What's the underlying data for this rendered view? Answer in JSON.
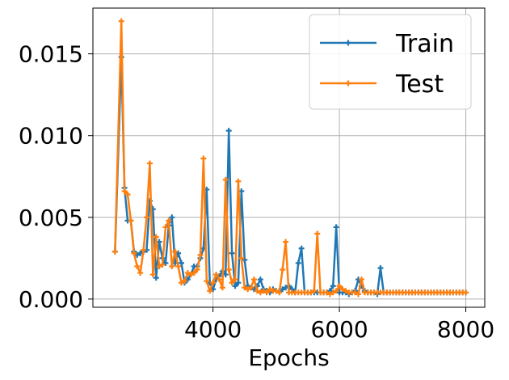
{
  "chart_data": {
    "type": "line",
    "title": "",
    "xlabel": "Epochs",
    "ylabel": "",
    "xlim": [
      2100,
      8300
    ],
    "ylim": [
      -0.0005,
      0.0178
    ],
    "x_ticks": [
      4000,
      6000,
      8000
    ],
    "x_tick_labels": [
      "4000",
      "6000",
      "8000"
    ],
    "y_ticks": [
      0.0,
      0.005,
      0.01,
      0.015
    ],
    "y_tick_labels": [
      "0.000",
      "0.005",
      "0.010",
      "0.015"
    ],
    "grid": true,
    "legend_position": "top-right",
    "x": [
      2450,
      2550,
      2600,
      2650,
      2700,
      2750,
      2800,
      2850,
      2900,
      2950,
      3000,
      3050,
      3100,
      3150,
      3200,
      3250,
      3300,
      3350,
      3400,
      3450,
      3500,
      3550,
      3600,
      3650,
      3700,
      3750,
      3800,
      3850,
      3900,
      3950,
      4000,
      4050,
      4100,
      4150,
      4200,
      4250,
      4300,
      4350,
      4400,
      4450,
      4500,
      4550,
      4600,
      4650,
      4700,
      4750,
      4800,
      4850,
      4900,
      4950,
      5000,
      5050,
      5100,
      5150,
      5200,
      5250,
      5300,
      5350,
      5400,
      5450,
      5500,
      5550,
      5600,
      5650,
      5700,
      5750,
      5800,
      5850,
      5900,
      5950,
      6000,
      6050,
      6100,
      6150,
      6200,
      6250,
      6300,
      6350,
      6400,
      6450,
      6500,
      6550,
      6600,
      6650,
      6700,
      6750,
      6800,
      6850,
      6900,
      6950,
      7000,
      7050,
      7100,
      7150,
      7200,
      7250,
      7300,
      7350,
      7400,
      7450,
      7500,
      7550,
      7600,
      7650,
      7700,
      7750,
      7800,
      7850,
      7900,
      7950,
      8000
    ],
    "series": [
      {
        "name": "Train",
        "color": "#1f77b4",
        "values": [
          0.0029,
          0.0148,
          0.0068,
          0.0048,
          0.0048,
          0.0029,
          0.0027,
          0.0028,
          0.0029,
          0.003,
          0.006,
          0.0055,
          0.0013,
          0.0035,
          0.0025,
          0.0022,
          0.0045,
          0.005,
          0.0022,
          0.0028,
          0.0022,
          0.001,
          0.0012,
          0.0015,
          0.002,
          0.002,
          0.0025,
          0.0031,
          0.0067,
          0.001,
          0.0006,
          0.0012,
          0.0014,
          0.0017,
          0.0015,
          0.0103,
          0.0028,
          0.0008,
          0.001,
          0.0066,
          0.0024,
          0.0008,
          0.0007,
          0.0006,
          0.0008,
          0.0012,
          0.0006,
          0.0005,
          0.0004,
          0.0006,
          0.0005,
          0.0005,
          0.0006,
          0.0007,
          0.0008,
          0.0006,
          0.0004,
          0.0022,
          0.0031,
          0.0004,
          0.0004,
          0.0004,
          0.0004,
          0.0004,
          0.0004,
          0.0004,
          0.0004,
          0.0005,
          0.0008,
          0.0044,
          0.0004,
          0.0004,
          0.0004,
          0.0003,
          0.0004,
          0.0005,
          0.0012,
          0.0008,
          0.0005,
          0.0004,
          0.0004,
          0.0004,
          0.0003,
          0.0019,
          0.0004,
          0.0004,
          0.0004,
          0.0004,
          0.0004,
          0.0004,
          0.0004,
          0.0004,
          0.0004,
          0.0004,
          0.0004,
          0.0004,
          0.0004,
          0.0004,
          0.0004,
          0.0004,
          0.0004,
          0.0004,
          0.0004,
          0.0004,
          0.0004,
          0.0004,
          0.0004,
          0.0004,
          0.0004,
          0.0004,
          0.0004
        ]
      },
      {
        "name": "Test",
        "color": "#ff7f0e",
        "values": [
          0.0029,
          0.017,
          0.0066,
          0.0064,
          0.0048,
          0.0028,
          0.002,
          0.0016,
          0.003,
          0.005,
          0.0083,
          0.0015,
          0.0038,
          0.002,
          0.0021,
          0.0044,
          0.0048,
          0.002,
          0.0029,
          0.002,
          0.001,
          0.0011,
          0.0016,
          0.0015,
          0.0016,
          0.0018,
          0.0027,
          0.0086,
          0.0011,
          0.0005,
          0.001,
          0.0015,
          0.0012,
          0.0007,
          0.0073,
          0.0018,
          0.001,
          0.0012,
          0.0072,
          0.0025,
          0.0007,
          0.0006,
          0.0007,
          0.0012,
          0.0005,
          0.0004,
          0.0005,
          0.0004,
          0.0006,
          0.0005,
          0.0005,
          0.0004,
          0.0018,
          0.0035,
          0.0004,
          0.0004,
          0.0004,
          0.0004,
          0.0004,
          0.0004,
          0.0004,
          0.0004,
          0.0005,
          0.004,
          0.0004,
          0.0004,
          0.0004,
          0.0003,
          0.0004,
          0.0005,
          0.0008,
          0.0006,
          0.0005,
          0.0004,
          0.0004,
          0.0004,
          0.0003,
          0.0012,
          0.0004,
          0.0004,
          0.0004,
          0.0004,
          0.0004,
          0.0004,
          0.0004,
          0.0004,
          0.0004,
          0.0004,
          0.0004,
          0.0004,
          0.0004,
          0.0004,
          0.0004,
          0.0004,
          0.0004,
          0.0004,
          0.0004,
          0.0004,
          0.0004,
          0.0004,
          0.0004,
          0.0004,
          0.0004,
          0.0004,
          0.0004,
          0.0004,
          0.0004,
          0.0004,
          0.0004,
          0.0004,
          0.0004
        ]
      }
    ]
  }
}
